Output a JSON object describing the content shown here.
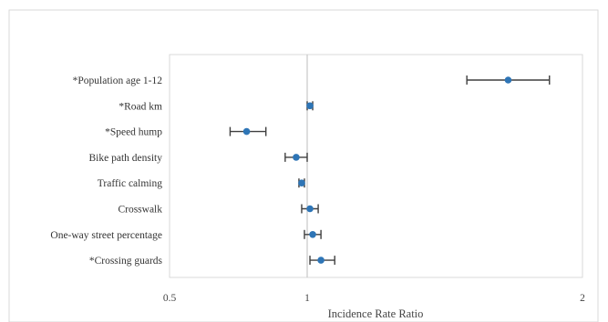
{
  "chart_data": {
    "type": "forest",
    "xlabel": "Incidence Rate Ratio",
    "ylabel": "",
    "title": "",
    "xlim": [
      0.5,
      2
    ],
    "xscale": "linear",
    "x_ticks": [
      "0.5",
      "1",
      "2"
    ],
    "reference_line": 1,
    "grid": false,
    "legend": "none",
    "categories": [
      "*Population age 1-12",
      "*Road km",
      "*Speed hump",
      "Bike path density",
      "Traffic calming",
      "Crosswalk",
      "One-way street percentage",
      "*Crossing guards"
    ],
    "estimates": [
      1.73,
      1.01,
      0.78,
      0.96,
      0.98,
      1.01,
      1.02,
      1.05
    ],
    "lower": [
      1.58,
      1.0,
      0.72,
      0.92,
      0.97,
      0.98,
      0.99,
      1.01
    ],
    "upper": [
      1.88,
      1.02,
      0.85,
      1.0,
      0.99,
      1.04,
      1.05,
      1.1
    ],
    "colors": {
      "point": "#2e75b6",
      "error_bar": "#3f3f3f",
      "reference": "#c8c8c8",
      "frame": "#d9d9d9"
    }
  }
}
